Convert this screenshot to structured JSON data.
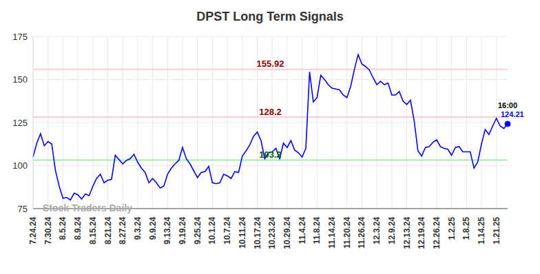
{
  "chart_data": {
    "type": "line",
    "title": "DPST Long Term Signals",
    "watermark": "Stock Traders Daily",
    "color": "#0000ff",
    "grid": true,
    "ylim": [
      75,
      175
    ],
    "yticks": [
      75,
      100,
      125,
      150,
      175
    ],
    "categories": [
      "7.24.24",
      null,
      null,
      null,
      "7.30.24",
      null,
      null,
      null,
      "8.5.24",
      null,
      null,
      null,
      "8.9.24",
      null,
      null,
      null,
      "8.15.24",
      null,
      null,
      null,
      "8.21.24",
      null,
      null,
      null,
      "8.27.24",
      null,
      null,
      null,
      "9.3.24",
      null,
      null,
      null,
      "9.9.24",
      null,
      null,
      null,
      "9.13.24",
      null,
      null,
      null,
      "9.19.24",
      null,
      null,
      null,
      "9.25.24",
      null,
      null,
      null,
      "10.1.24",
      null,
      null,
      null,
      "10.7.24",
      null,
      null,
      null,
      "10.11.24",
      null,
      null,
      null,
      "10.17.24",
      null,
      null,
      null,
      "10.23.24",
      null,
      null,
      null,
      "10.29.24",
      null,
      null,
      null,
      "11.4.24",
      null,
      null,
      null,
      "11.8.24",
      null,
      null,
      null,
      "11.14.24",
      null,
      null,
      null,
      "11.20.24",
      null,
      null,
      null,
      "11.26.24",
      null,
      null,
      null,
      "12.3.24",
      null,
      null,
      null,
      "12.9.24",
      null,
      null,
      null,
      "12.13.24",
      null,
      null,
      null,
      "12.19.24",
      null,
      null,
      null,
      "12.26.24",
      null,
      null,
      null,
      "1.2.25",
      null,
      null,
      null,
      "1.8.25",
      null,
      null,
      null,
      "1.14.25",
      null,
      null,
      null,
      "1.21.25",
      null,
      null,
      null
    ],
    "values": [
      105,
      113,
      118.5,
      111.5,
      114,
      112.5,
      97,
      88,
      81,
      81.5,
      80,
      84,
      83,
      80.5,
      83.5,
      82.5,
      88,
      92.5,
      95,
      90,
      91.5,
      92,
      106,
      103.5,
      101,
      103,
      104,
      106.5,
      102,
      98.5,
      96,
      90,
      92.5,
      90,
      87,
      88,
      95,
      98.5,
      101,
      103,
      110.5,
      104,
      101,
      97,
      93,
      96,
      96.5,
      99.5,
      90,
      89.5,
      90,
      95,
      94,
      92.5,
      96.5,
      96,
      105.5,
      108.5,
      112,
      117,
      119.5,
      114.5,
      104,
      107.5,
      108,
      110,
      104,
      113,
      110.5,
      114.5,
      109,
      107.5,
      105,
      110,
      154.5,
      137,
      139.5,
      152.5,
      150,
      147,
      145,
      144.5,
      144,
      141,
      139.5,
      146,
      156,
      164.5,
      159,
      157.5,
      155.5,
      151,
      147,
      149,
      147,
      148,
      141,
      141,
      143,
      137.5,
      135.5,
      138,
      126,
      108.5,
      105.5,
      110.5,
      111,
      113.5,
      115,
      111,
      110,
      109.5,
      106,
      110.5,
      111,
      108,
      108,
      108,
      98.5,
      102,
      112.5,
      121,
      118,
      123,
      127.5,
      123,
      121.5,
      124.21
    ],
    "reference_lines": [
      {
        "value": 155.92,
        "label": "155.92",
        "color": "#ffcccc"
      },
      {
        "value": 128.2,
        "label": "128.2",
        "color": "#ffcccc"
      },
      {
        "value": 103.2,
        "label": "103.2",
        "color": "#a6eea6"
      }
    ],
    "annotation": {
      "text": "16:00",
      "value": 124.21
    }
  }
}
